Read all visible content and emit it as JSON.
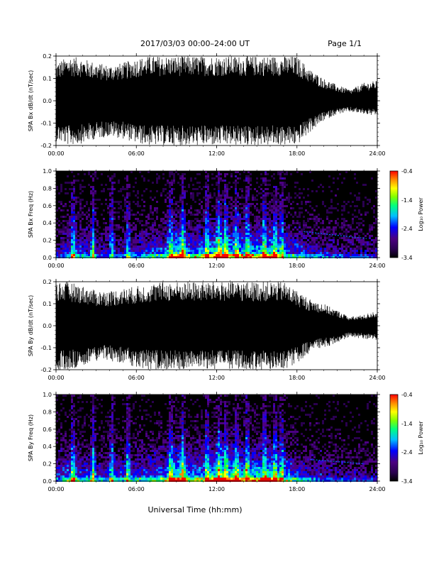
{
  "header": {
    "title": "2017/03/03  00:00–24:00 UT",
    "page": "Page 1/1"
  },
  "footer": {
    "xlabel": "Universal Time (hh:mm)"
  },
  "colorbar": {
    "label": "Log₁₀ Power",
    "ticks": [
      "-0.4",
      "-1.4",
      "-2.4",
      "-3.4"
    ],
    "range": [
      -3.4,
      -0.4
    ],
    "colors": [
      "#000000",
      "#2a0050",
      "#4b0082",
      "#0000ff",
      "#00bfff",
      "#00ff80",
      "#7fff00",
      "#ffff00",
      "#ff8c00",
      "#ff0000"
    ]
  },
  "chart_data": [
    {
      "type": "line",
      "ylabel": "SPA Bx dB/dt (nT/sec)",
      "xlim": [
        0,
        24
      ],
      "ylim": [
        -0.2,
        0.2
      ],
      "yticks": [
        "0.2",
        "0.1",
        "0.0",
        "-0.1",
        "-0.2"
      ],
      "xticks": [
        "00:00",
        "06:00",
        "12:00",
        "18:00",
        "24:00"
      ],
      "x": [
        0,
        1,
        2,
        3,
        4,
        5,
        6,
        7,
        8,
        9,
        10,
        11,
        12,
        13,
        14,
        15,
        16,
        17,
        18,
        19,
        20,
        21,
        22,
        23,
        24
      ],
      "envelope_upper": [
        0.17,
        0.2,
        0.19,
        0.17,
        0.16,
        0.17,
        0.19,
        0.2,
        0.2,
        0.2,
        0.2,
        0.2,
        0.2,
        0.2,
        0.2,
        0.2,
        0.2,
        0.2,
        0.2,
        0.14,
        0.1,
        0.07,
        0.05,
        0.08,
        0.09
      ],
      "envelope_lower": [
        -0.18,
        -0.2,
        -0.19,
        -0.17,
        -0.16,
        -0.17,
        -0.19,
        -0.2,
        -0.2,
        -0.2,
        -0.2,
        -0.2,
        -0.2,
        -0.2,
        -0.2,
        -0.2,
        -0.2,
        -0.2,
        -0.2,
        -0.14,
        -0.09,
        -0.06,
        -0.05,
        -0.06,
        -0.07
      ]
    },
    {
      "type": "heatmap",
      "ylabel": "SPA Bx Freq (Hz)",
      "xlim": [
        0,
        24
      ],
      "ylim": [
        0,
        1.0
      ],
      "yticks": [
        "1.0",
        "0.8",
        "0.6",
        "0.4",
        "0.2",
        "0.0"
      ],
      "xticks": [
        "00:00",
        "06:00",
        "12:00",
        "18:00",
        "24:00"
      ],
      "zlabel": "Log₁₀ Power",
      "zlim": [
        -3.4,
        -0.4
      ],
      "activity_by_hour": [
        0.3,
        0.55,
        0.45,
        0.35,
        0.35,
        0.35,
        0.4,
        0.5,
        0.55,
        0.85,
        0.6,
        0.65,
        0.8,
        0.75,
        0.7,
        0.7,
        0.8,
        0.55,
        0.5,
        0.4,
        0.35,
        0.3,
        0.3,
        0.3
      ],
      "bursts_hours": [
        1.2,
        2.7,
        4.1,
        5.3,
        8.5,
        9.4,
        11.2,
        12.1,
        12.6,
        13.4,
        14.2,
        15.5,
        16.3,
        16.8
      ],
      "faint_line": {
        "from_hour": 18.5,
        "to_hour": 23.2,
        "from_freq": 0.3,
        "to_freq": 0.22
      }
    },
    {
      "type": "line",
      "ylabel": "SPA By dB/dt (nT/sec)",
      "xlim": [
        0,
        24
      ],
      "ylim": [
        -0.2,
        0.2
      ],
      "yticks": [
        "0.2",
        "0.1",
        "0.0",
        "-0.1",
        "-0.2"
      ],
      "xticks": [
        "00:00",
        "06:00",
        "12:00",
        "18:00",
        "24:00"
      ],
      "x": [
        0,
        1,
        2,
        3,
        4,
        5,
        6,
        7,
        8,
        9,
        10,
        11,
        12,
        13,
        14,
        15,
        16,
        17,
        18,
        19,
        20,
        21,
        22,
        23,
        24
      ],
      "envelope_upper": [
        0.2,
        0.2,
        0.18,
        0.16,
        0.16,
        0.17,
        0.18,
        0.19,
        0.2,
        0.2,
        0.2,
        0.2,
        0.2,
        0.2,
        0.2,
        0.2,
        0.2,
        0.2,
        0.16,
        0.12,
        0.1,
        0.07,
        0.04,
        0.05,
        0.07
      ],
      "envelope_lower": [
        -0.2,
        -0.2,
        -0.18,
        -0.16,
        -0.16,
        -0.17,
        -0.19,
        -0.2,
        -0.2,
        -0.2,
        -0.2,
        -0.2,
        -0.2,
        -0.2,
        -0.2,
        -0.2,
        -0.2,
        -0.2,
        -0.17,
        -0.12,
        -0.1,
        -0.08,
        -0.05,
        -0.06,
        -0.07
      ]
    },
    {
      "type": "heatmap",
      "ylabel": "SPA By Freq (Hz)",
      "xlim": [
        0,
        24
      ],
      "ylim": [
        0,
        1.0
      ],
      "yticks": [
        "1.0",
        "0.8",
        "0.6",
        "0.4",
        "0.2",
        "0.0"
      ],
      "xticks": [
        "00:00",
        "06:00",
        "12:00",
        "18:00",
        "24:00"
      ],
      "zlabel": "Log₁₀ Power",
      "zlim": [
        -3.4,
        -0.4
      ],
      "activity_by_hour": [
        0.4,
        0.6,
        0.5,
        0.45,
        0.45,
        0.45,
        0.5,
        0.55,
        0.6,
        0.9,
        0.65,
        0.7,
        0.85,
        0.8,
        0.75,
        0.75,
        0.8,
        0.6,
        0.5,
        0.4,
        0.35,
        0.3,
        0.3,
        0.3
      ],
      "bursts_hours": [
        1.2,
        2.7,
        4.1,
        5.3,
        8.5,
        9.4,
        11.2,
        12.1,
        12.6,
        13.4,
        14.2,
        15.5,
        16.3,
        16.8
      ],
      "faint_line": {
        "from_hour": 19.0,
        "to_hour": 23.0,
        "from_freq": 0.25,
        "to_freq": 0.2
      }
    }
  ]
}
